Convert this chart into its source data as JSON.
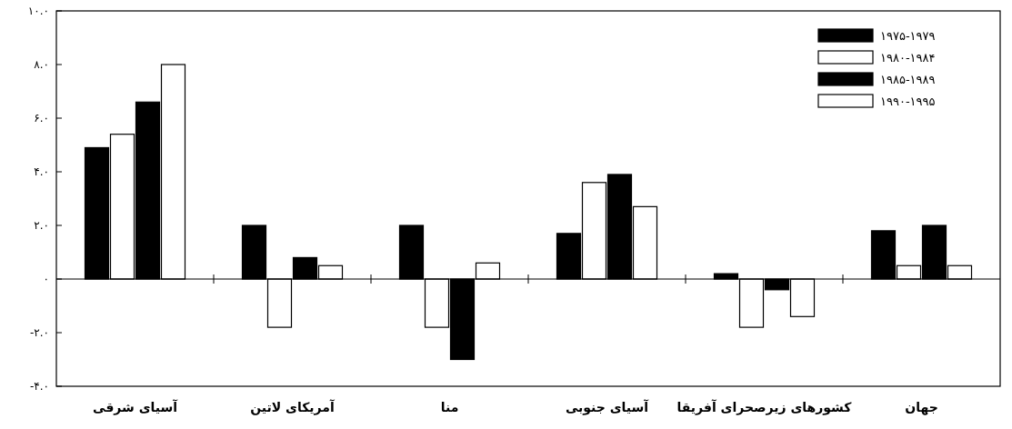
{
  "chart_data": {
    "type": "bar",
    "categories": [
      "آسیای شرقی",
      "آمریکای لاتین",
      "منا",
      "آسیای جنوبی",
      "کشورهای زیرصحرای آفریقا",
      "جهان"
    ],
    "series": [
      {
        "name": "۱۹۷۵-۱۹۷۹",
        "color": "#000000",
        "values": [
          4.9,
          2.0,
          2.0,
          1.7,
          0.2,
          1.8
        ]
      },
      {
        "name": "۱۹۸۰-۱۹۸۴",
        "color": "#ffffff",
        "values": [
          5.4,
          -1.8,
          -1.8,
          3.6,
          -1.8,
          0.5
        ]
      },
      {
        "name": "۱۹۸۵-۱۹۸۹",
        "color": "#000000",
        "values": [
          6.6,
          0.8,
          -3.0,
          3.9,
          -0.4,
          2.0
        ]
      },
      {
        "name": "۱۹۹۰-۱۹۹۵",
        "color": "#ffffff",
        "values": [
          8.0,
          0.5,
          0.6,
          2.7,
          -1.4,
          0.5
        ]
      }
    ],
    "ylim": [
      -4,
      10
    ],
    "yticks": [
      {
        "value": -4,
        "label": "-۴.۰"
      },
      {
        "value": -2,
        "label": "-۲.۰"
      },
      {
        "value": 0,
        "label": "۰"
      },
      {
        "value": 2,
        "label": "۲.۰"
      },
      {
        "value": 4,
        "label": "۴.۰"
      },
      {
        "value": 6,
        "label": "۶.۰"
      },
      {
        "value": 8,
        "label": "۸.۰"
      },
      {
        "value": 10,
        "label": "۱۰.۰"
      }
    ],
    "ref_lines": [
      {
        "axis": "y",
        "value": 0,
        "color": "#000000"
      }
    ],
    "legend": "top right",
    "grid": false
  }
}
